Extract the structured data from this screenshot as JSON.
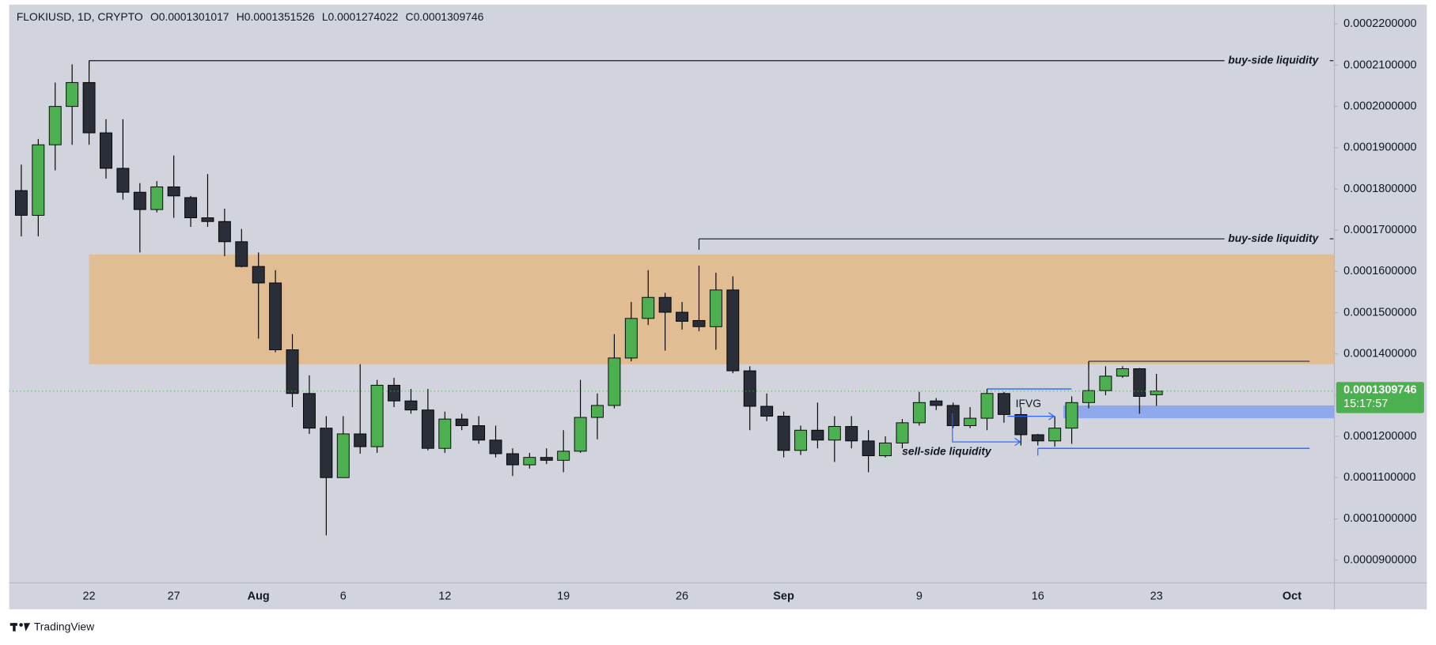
{
  "chart_data": {
    "type": "candlestick",
    "symbol": "FLOKIUSD, 1D, CRYPTO",
    "ohlc_labels": [
      "O",
      "H",
      "L",
      "C"
    ],
    "brand": "TradingView",
    "countdown": "15:17:57",
    "categories": [
      null,
      null,
      null,
      null,
      "22",
      null,
      null,
      null,
      null,
      "27",
      null,
      null,
      null,
      null,
      "Aug",
      null,
      null,
      null,
      null,
      "6",
      null,
      null,
      null,
      null,
      null,
      "12",
      null,
      null,
      null,
      null,
      null,
      null,
      "19",
      null,
      null,
      null,
      null,
      null,
      null,
      "26",
      null,
      null,
      null,
      null,
      null,
      "Sep",
      null,
      null,
      null,
      null,
      null,
      null,
      null,
      "9",
      null,
      null,
      null,
      null,
      null,
      null,
      "16",
      null,
      null,
      null,
      null,
      null,
      null,
      "23",
      null,
      null,
      null,
      null,
      null,
      null,
      null,
      "Oct",
      null,
      null
    ],
    "open": [
      0.0001796,
      0.0001736,
      0.0001907,
      0.0002,
      0.0002058,
      0.0001936,
      0.000185,
      0.0001792,
      0.000175,
      0.0001805,
      0.0001779,
      0.000173,
      0.0001721,
      0.0001672,
      0.0001612,
      0.0001572,
      0.000141,
      0.0001304,
      0.000122,
      0.00011,
      0.0001206,
      0.0001175,
      0.0001324,
      0.0001286,
      0.0001264,
      0.0001171,
      0.0001242,
      0.0001226,
      0.0001191,
      0.0001158,
      0.0001131,
      0.0001149,
      0.0001142,
      0.0001164,
      0.0001246,
      0.0001275,
      0.000139,
      0.0001486,
      0.0001537,
      0.0001501,
      0.0001481,
      0.0001466,
      0.0001555,
      0.0001359,
      0.0001273,
      0.0001249,
      0.0001166,
      0.0001215,
      0.0001191,
      0.0001224,
      0.0001189,
      0.0001153,
      0.0001184,
      0.0001233,
      0.0001286,
      0.0001275,
      0.0001226,
      0.0001244,
      0.0001304,
      0.0001253,
      0.0001204,
      0.0001189,
      0.000122,
      0.0001282,
      0.0001311,
      0.0001346,
      0.0001364,
      0.0001301017,
      null,
      null,
      null,
      null,
      null,
      null,
      null,
      null,
      null,
      null
    ],
    "high": [
      0.0001859,
      0.0001921,
      0.0002058,
      0.0002102,
      0.0002111,
      0.0001969,
      0.0001969,
      0.0001814,
      0.0001819,
      0.0001881,
      0.0001783,
      0.0001836,
      0.0001752,
      0.0001703,
      0.0001646,
      0.0001603,
      0.0001448,
      0.0001348,
      0.0001249,
      0.0001249,
      0.0001375,
      0.0001337,
      0.0001342,
      0.0001315,
      0.0001315,
      0.000126,
      0.0001255,
      0.0001249,
      0.0001226,
      0.0001171,
      0.000116,
      0.0001171,
      0.0001215,
      0.0001337,
      0.0001304,
      0.0001448,
      0.0001526,
      0.0001603,
      0.0001548,
      0.0001526,
      0.0001614,
      0.0001597,
      0.0001588,
      0.000137,
      0.0001304,
      0.000126,
      0.0001226,
      0.0001282,
      0.0001249,
      0.0001249,
      0.0001215,
      0.00012,
      0.0001242,
      0.0001308,
      0.0001293,
      0.0001282,
      0.0001271,
      0.0001315,
      0.0001308,
      0.0001271,
      0.0001206,
      0.0001249,
      0.0001297,
      0.0001382,
      0.000137,
      0.000137,
      0.0001366,
      0.0001351526,
      null,
      null,
      null,
      null,
      null,
      null,
      null,
      null,
      null,
      null
    ],
    "low": [
      0.0001685,
      0.0001685,
      0.0001845,
      0.0001907,
      0.0001907,
      0.0001825,
      0.0001774,
      0.0001646,
      0.0001743,
      0.000173,
      0.0001708,
      0.0001708,
      0.0001637,
      0.000161,
      0.0001437,
      0.0001404,
      0.0001271,
      0.0001206,
      9.6e-05,
      0.00011,
      0.0001158,
      0.000116,
      0.0001271,
      0.0001255,
      0.0001166,
      0.000116,
      0.0001215,
      0.0001182,
      0.0001149,
      0.0001104,
      0.0001122,
      0.0001133,
      0.0001113,
      0.000116,
      0.0001193,
      0.0001268,
      0.0001382,
      0.000147,
      0.0001408,
      0.0001459,
      0.0001455,
      0.000141,
      0.0001353,
      0.0001215,
      0.0001237,
      0.0001149,
      0.0001155,
      0.0001171,
      0.0001138,
      0.0001171,
      0.0001113,
      0.0001149,
      0.0001171,
      0.0001226,
      0.0001264,
      0.000122,
      0.000122,
      0.0001215,
      0.0001233,
      0.0001178,
      0.0001178,
      0.0001175,
      0.0001182,
      0.0001268,
      0.00013,
      0.0001342,
      0.0001255,
      0.0001274022,
      null,
      null,
      null,
      null,
      null,
      null,
      null,
      null,
      null,
      null
    ],
    "close": [
      0.0001736,
      0.0001907,
      0.0002,
      0.0002058,
      0.0001936,
      0.000185,
      0.0001792,
      0.000175,
      0.0001805,
      0.0001783,
      0.000173,
      0.0001721,
      0.0001672,
      0.0001612,
      0.0001572,
      0.000141,
      0.0001304,
      0.000122,
      0.00011,
      0.0001206,
      0.0001175,
      0.0001324,
      0.0001286,
      0.0001264,
      0.0001171,
      0.0001242,
      0.0001226,
      0.0001191,
      0.0001158,
      0.0001131,
      0.0001149,
      0.0001142,
      0.0001164,
      0.0001246,
      0.0001275,
      0.000139,
      0.0001486,
      0.0001537,
      0.0001501,
      0.0001479,
      0.0001466,
      0.0001555,
      0.0001359,
      0.0001273,
      0.0001249,
      0.0001166,
      0.0001215,
      0.0001191,
      0.0001224,
      0.0001189,
      0.0001153,
      0.0001184,
      0.0001233,
      0.0001282,
      0.0001275,
      0.0001226,
      0.0001244,
      0.0001304,
      0.0001253,
      0.0001204,
      0.0001189,
      0.000122,
      0.0001282,
      0.0001311,
      0.0001346,
      0.0001364,
      0.0001297,
      0.0001309746,
      null,
      null,
      null,
      null,
      null,
      null,
      null,
      null,
      null,
      null
    ],
    "up_color": "#4caf50",
    "down_color": "#2a2e39",
    "ylim": [
      8.45e-05,
      0.0002247
    ],
    "yticks": [
      {
        "value": 0.00022,
        "label": "0.0002200000"
      },
      {
        "value": 0.00021,
        "label": "0.0002100000"
      },
      {
        "value": 0.0002,
        "label": "0.0002000000"
      },
      {
        "value": 0.00019,
        "label": "0.0001900000"
      },
      {
        "value": 0.00018,
        "label": "0.0001800000"
      },
      {
        "value": 0.00017,
        "label": "0.0001700000"
      },
      {
        "value": 0.00016,
        "label": "0.0001600000"
      },
      {
        "value": 0.00015,
        "label": "0.0001500000"
      },
      {
        "value": 0.00014,
        "label": "0.0001400000"
      },
      {
        "value": 0.00013,
        "label": "0.0001300000"
      },
      {
        "value": 0.00012,
        "label": "0.0001200000"
      },
      {
        "value": 0.00011,
        "label": "0.0001100000"
      },
      {
        "value": 0.0001,
        "label": "0.0001000000"
      },
      {
        "value": 9e-05,
        "label": "0.0000900000"
      }
    ],
    "zone": {
      "low": 0.0001375,
      "high": 0.0001641,
      "color": "#e3b985"
    },
    "levels": [
      {
        "label": "buy-side liquidity",
        "value": 0.0002111
      },
      {
        "label": "buy-side liquidity",
        "value": 0.0001679
      }
    ],
    "lines": [
      0.0001382,
      0.0001315,
      0.0001171
    ],
    "ifvg": {
      "label": "IFVG",
      "low": 0.0001244,
      "high": 0.0001275,
      "color": "#8fa9ec"
    },
    "sell_label": "sell-side liquidity"
  }
}
